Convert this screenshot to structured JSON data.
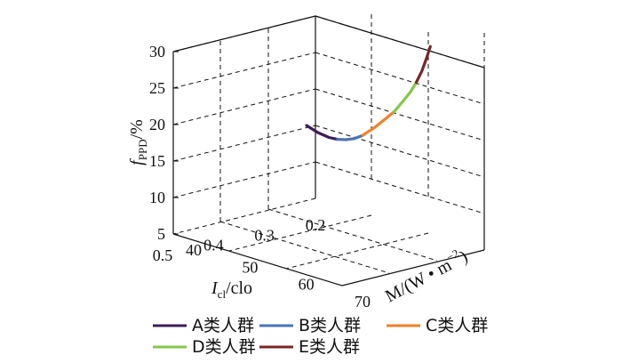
{
  "chart_data": {
    "type": "line",
    "axes": {
      "z": {
        "label_prefix": "f",
        "label_sub": "PPD",
        "label_suffix": "/%",
        "ticks": [
          "5",
          "10",
          "15",
          "20",
          "25",
          "30"
        ],
        "range": [
          5,
          30
        ]
      },
      "x": {
        "label_prefix": "I",
        "label_sub": "cl",
        "label_suffix": "/clo",
        "ticks": [
          "0.5",
          "0.4",
          "0.3",
          "0.2"
        ],
        "range": [
          0.2,
          0.5
        ]
      },
      "y": {
        "label_prefix": "M/(W • m",
        "label_sup": "−2",
        "label_suffix": ")",
        "ticks": [
          "40",
          "50",
          "60",
          "70"
        ],
        "range": [
          40,
          70
        ]
      }
    },
    "grid": true,
    "legend_position": "bottom",
    "series": [
      {
        "name": "A类人群",
        "color": "#3b1e52",
        "points": [
          {
            "I": 0.2,
            "M": 40,
            "PPD": 15.0
          },
          {
            "I": 0.2,
            "M": 42,
            "PPD": 14.5
          },
          {
            "I": 0.2,
            "M": 44,
            "PPD": 14.3
          },
          {
            "I": 0.2,
            "M": 45.5,
            "PPD": 14.4
          }
        ]
      },
      {
        "name": "B类人群",
        "color": "#4a74b4",
        "points": [
          {
            "I": 0.2,
            "M": 45.5,
            "PPD": 14.4
          },
          {
            "I": 0.2,
            "M": 47,
            "PPD": 14.7
          },
          {
            "I": 0.2,
            "M": 48.5,
            "PPD": 15.2
          },
          {
            "I": 0.2,
            "M": 50,
            "PPD": 16.0
          }
        ]
      },
      {
        "name": "C类人群",
        "color": "#f07f2a",
        "points": [
          {
            "I": 0.2,
            "M": 50,
            "PPD": 16.0
          },
          {
            "I": 0.2,
            "M": 52,
            "PPD": 17.5
          },
          {
            "I": 0.2,
            "M": 54,
            "PPD": 19.2
          },
          {
            "I": 0.2,
            "M": 55.5,
            "PPD": 20.5
          }
        ]
      },
      {
        "name": "D类人群",
        "color": "#86c64a",
        "points": [
          {
            "I": 0.2,
            "M": 55.5,
            "PPD": 20.5
          },
          {
            "I": 0.2,
            "M": 57,
            "PPD": 22.2
          },
          {
            "I": 0.2,
            "M": 58.5,
            "PPD": 24.0
          },
          {
            "I": 0.2,
            "M": 59.5,
            "PPD": 25.5
          }
        ]
      },
      {
        "name": "E类人群",
        "color": "#7a2626",
        "points": [
          {
            "I": 0.2,
            "M": 59.5,
            "PPD": 25.5
          },
          {
            "I": 0.2,
            "M": 60.5,
            "PPD": 27.3
          },
          {
            "I": 0.2,
            "M": 61.3,
            "PPD": 29.2
          },
          {
            "I": 0.2,
            "M": 62,
            "PPD": 31.0
          }
        ]
      }
    ]
  }
}
